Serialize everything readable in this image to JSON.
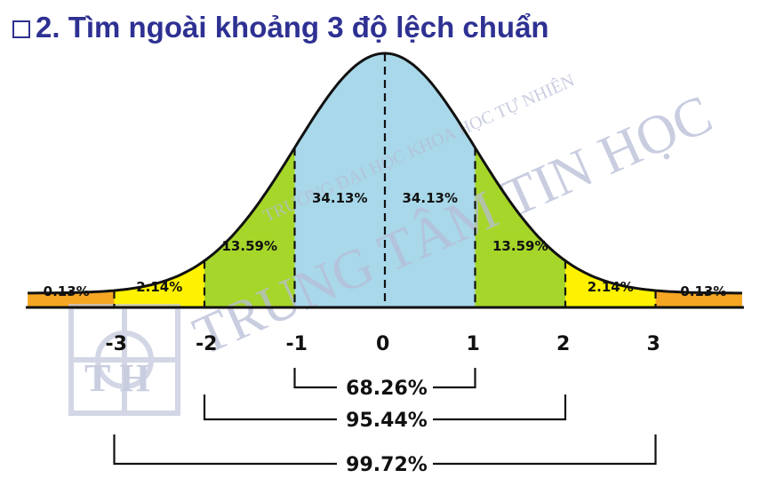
{
  "title": "2. Tìm ngoài khoảng 3 độ lệch chuẩn",
  "watermark": {
    "line1": "TRUNG TÂM TIN HỌC",
    "line2": "TRƯỜNG ĐẠI HỌC KHOA HỌC TỰ NHIÊN",
    "logo_letters": "T H"
  },
  "chart_data": {
    "type": "area",
    "x_ticks": [
      "-3",
      "-2",
      "-1",
      "0",
      "1",
      "2",
      "3"
    ],
    "segments": [
      {
        "from": -3.5,
        "to": -3,
        "label": "0.13%",
        "color": "#f5a623"
      },
      {
        "from": -3,
        "to": -2,
        "label": "2.14%",
        "color": "#fff200"
      },
      {
        "from": -2,
        "to": -1,
        "label": "13.59%",
        "color": "#a6d62a"
      },
      {
        "from": -1,
        "to": 0,
        "label": "34.13%",
        "color": "#a8d8ea"
      },
      {
        "from": 0,
        "to": 1,
        "label": "34.13%",
        "color": "#a8d8ea"
      },
      {
        "from": 1,
        "to": 2,
        "label": "13.59%",
        "color": "#a6d62a"
      },
      {
        "from": 2,
        "to": 3,
        "label": "2.14%",
        "color": "#fff200"
      },
      {
        "from": 3,
        "to": 3.5,
        "label": "0.13%",
        "color": "#f5a623"
      }
    ],
    "ranges": [
      {
        "from": -1,
        "to": 1,
        "label": "68.26%"
      },
      {
        "from": -2,
        "to": 2,
        "label": "95.44%"
      },
      {
        "from": -3,
        "to": 3,
        "label": "99.72%"
      }
    ],
    "colors": {
      "title": "#2e3192",
      "curve": "#111111",
      "watermark": "#b7bdd6"
    }
  }
}
